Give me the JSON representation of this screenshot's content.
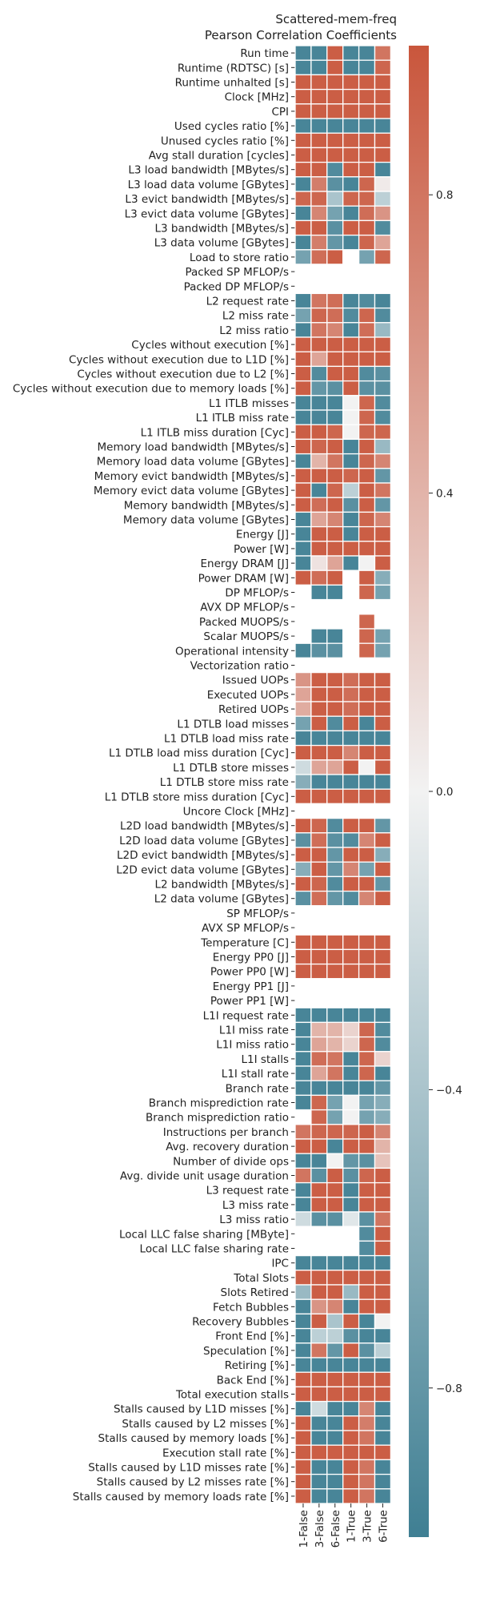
{
  "chart_data": {
    "type": "heatmap",
    "title": "Scattered-mem-freq",
    "subtitle": "Pearson Correlation Coefficients",
    "columns": [
      "1-False",
      "3-False",
      "6-False",
      "1-True",
      "3-True",
      "6-True"
    ],
    "colorbar": {
      "min": -1.0,
      "max": 1.0,
      "ticks": [
        0.8,
        0.4,
        0.0,
        -0.4,
        -0.8
      ],
      "tick_labels": [
        "0.8",
        "0.4",
        "0.0",
        "−0.4",
        "−0.8"
      ],
      "low_color": "#3f7f93",
      "mid_color": "#f2f2f2",
      "high_color": "#c9563c"
    },
    "missing_color": "#ffffff",
    "rows": [
      {
        "label": "Run time",
        "values": [
          -0.95,
          -0.95,
          0.95,
          -0.95,
          -0.95,
          0.8
        ]
      },
      {
        "label": "Runtime (RDTSC) [s]",
        "values": [
          -0.95,
          -0.95,
          0.95,
          -0.95,
          -0.95,
          0.9
        ]
      },
      {
        "label": "Runtime unhalted [s]",
        "values": [
          0.95,
          0.95,
          0.95,
          0.95,
          0.95,
          0.95
        ]
      },
      {
        "label": "Clock [MHz]",
        "values": [
          0.95,
          0.95,
          0.95,
          0.95,
          0.95,
          0.95
        ]
      },
      {
        "label": "CPI",
        "values": [
          0.95,
          0.95,
          0.95,
          0.95,
          0.95,
          0.95
        ]
      },
      {
        "label": "Used cycles ratio [%]",
        "values": [
          -0.95,
          -0.95,
          -0.95,
          -0.95,
          -0.95,
          -0.95
        ]
      },
      {
        "label": "Unused cycles ratio [%]",
        "values": [
          0.95,
          0.95,
          0.95,
          0.95,
          0.95,
          0.95
        ]
      },
      {
        "label": "Avg stall duration [cycles]",
        "values": [
          0.95,
          0.95,
          0.95,
          0.95,
          0.95,
          0.95
        ]
      },
      {
        "label": "L3 load bandwidth [MBytes/s]",
        "values": [
          0.95,
          0.95,
          -0.9,
          0.95,
          0.95,
          -0.95
        ]
      },
      {
        "label": "L3 load data volume [GBytes]",
        "values": [
          -0.95,
          0.75,
          -0.85,
          -0.95,
          0.9,
          0.05
        ]
      },
      {
        "label": "L3 evict bandwidth [MBytes/s]",
        "values": [
          0.9,
          0.9,
          -0.4,
          0.9,
          0.9,
          -0.3
        ]
      },
      {
        "label": "L3 evict data volume [GBytes]",
        "values": [
          -0.95,
          0.7,
          -0.7,
          -0.95,
          0.85,
          0.6
        ]
      },
      {
        "label": "L3 bandwidth [MBytes/s]",
        "values": [
          0.95,
          0.95,
          -0.85,
          0.95,
          0.95,
          -0.9
        ]
      },
      {
        "label": "L3 data volume [GBytes]",
        "values": [
          -0.95,
          0.75,
          -0.8,
          -0.95,
          0.9,
          0.5
        ]
      },
      {
        "label": "Load to store ratio",
        "values": [
          -0.7,
          0.85,
          0.95,
          null,
          -0.7,
          0.9
        ]
      },
      {
        "label": "Packed SP MFLOP/s",
        "values": [
          null,
          null,
          null,
          null,
          null,
          null
        ]
      },
      {
        "label": "Packed DP MFLOP/s",
        "values": [
          null,
          null,
          null,
          null,
          null,
          null
        ]
      },
      {
        "label": "L2 request rate",
        "values": [
          -0.95,
          0.8,
          0.85,
          -0.95,
          -0.9,
          -0.95
        ]
      },
      {
        "label": "L2 miss rate",
        "values": [
          -0.7,
          0.9,
          0.85,
          -0.9,
          0.9,
          -0.9
        ]
      },
      {
        "label": "L2 miss ratio",
        "values": [
          -0.95,
          0.8,
          0.7,
          -0.95,
          0.85,
          -0.5
        ]
      },
      {
        "label": "Cycles without execution [%]",
        "values": [
          0.95,
          0.95,
          0.95,
          0.95,
          0.95,
          0.95
        ]
      },
      {
        "label": "Cycles without execution due to L1D [%]",
        "values": [
          0.95,
          0.5,
          0.95,
          0.95,
          0.95,
          0.95
        ]
      },
      {
        "label": "Cycles without execution due to L2 [%]",
        "values": [
          0.95,
          -0.9,
          0.95,
          0.95,
          -0.9,
          -0.85
        ]
      },
      {
        "label": "Cycles without execution due to memory loads [%]",
        "values": [
          0.95,
          -0.8,
          -0.85,
          0.95,
          -0.85,
          -0.85
        ]
      },
      {
        "label": "L1 ITLB misses",
        "values": [
          -0.95,
          -0.95,
          -0.95,
          0.0,
          0.9,
          -0.9
        ]
      },
      {
        "label": "L1 ITLB miss rate",
        "values": [
          -0.95,
          -0.95,
          -0.95,
          0.0,
          0.9,
          -0.9
        ]
      },
      {
        "label": "L1 ITLB miss duration [Cyc]",
        "values": [
          0.95,
          0.95,
          0.9,
          0.0,
          0.9,
          0.9
        ]
      },
      {
        "label": "Memory load bandwidth [MBytes/s]",
        "values": [
          0.95,
          0.9,
          0.95,
          -0.95,
          0.95,
          -0.5
        ]
      },
      {
        "label": "Memory load data volume [GBytes]",
        "values": [
          -0.95,
          0.4,
          0.8,
          -0.95,
          0.9,
          0.7
        ]
      },
      {
        "label": "Memory evict bandwidth [MBytes/s]",
        "values": [
          0.95,
          0.95,
          0.95,
          0.9,
          0.95,
          -0.8
        ]
      },
      {
        "label": "Memory evict data volume [GBytes]",
        "values": [
          0.95,
          -0.95,
          0.9,
          -0.3,
          0.95,
          0.8
        ]
      },
      {
        "label": "Memory bandwidth [MBytes/s]",
        "values": [
          0.95,
          0.85,
          0.95,
          -0.85,
          0.95,
          -0.8
        ]
      },
      {
        "label": "Memory data volume [GBytes]",
        "values": [
          -0.95,
          0.5,
          0.7,
          -0.95,
          0.9,
          0.7
        ]
      },
      {
        "label": "Energy [J]",
        "values": [
          -0.95,
          0.95,
          0.95,
          -0.95,
          0.95,
          0.95
        ]
      },
      {
        "label": "Power [W]",
        "values": [
          -0.95,
          0.95,
          0.95,
          0.95,
          0.95,
          0.95
        ]
      },
      {
        "label": "Energy DRAM [J]",
        "values": [
          -0.95,
          0.1,
          0.5,
          -0.95,
          0.0,
          0.95
        ]
      },
      {
        "label": "Power DRAM [W]",
        "values": [
          0.95,
          0.85,
          0.95,
          null,
          0.95,
          -0.6
        ]
      },
      {
        "label": "DP MFLOP/s",
        "values": [
          null,
          -0.95,
          -0.95,
          null,
          0.9,
          -0.7
        ]
      },
      {
        "label": "AVX DP MFLOP/s",
        "values": [
          null,
          null,
          null,
          null,
          null,
          null
        ]
      },
      {
        "label": "Packed MUOPS/s",
        "values": [
          null,
          null,
          null,
          null,
          0.9,
          null
        ]
      },
      {
        "label": "Scalar MUOPS/s",
        "values": [
          null,
          -0.95,
          -0.95,
          null,
          0.9,
          -0.7
        ]
      },
      {
        "label": "Operational intensity",
        "values": [
          -0.95,
          -0.85,
          -0.85,
          null,
          0.9,
          -0.7
        ]
      },
      {
        "label": "Vectorization ratio",
        "values": [
          null,
          null,
          null,
          null,
          null,
          null
        ]
      },
      {
        "label": "Issued UOPs",
        "values": [
          0.6,
          0.95,
          0.95,
          0.85,
          0.95,
          0.95
        ]
      },
      {
        "label": "Executed UOPs",
        "values": [
          0.5,
          0.95,
          0.95,
          0.85,
          0.95,
          0.95
        ]
      },
      {
        "label": "Retired UOPs",
        "values": [
          0.45,
          0.95,
          0.95,
          0.85,
          0.95,
          0.95
        ]
      },
      {
        "label": "L1 DTLB load misses",
        "values": [
          -0.7,
          0.95,
          -0.9,
          0.95,
          -0.95,
          0.95
        ]
      },
      {
        "label": "L1 DTLB load miss rate",
        "values": [
          -0.95,
          -0.95,
          -0.95,
          -0.95,
          -0.95,
          -0.95
        ]
      },
      {
        "label": "L1 DTLB load miss duration [Cyc]",
        "values": [
          0.95,
          0.95,
          0.95,
          0.7,
          0.95,
          0.95
        ]
      },
      {
        "label": "L1 DTLB store misses",
        "values": [
          -0.2,
          0.5,
          0.5,
          0.95,
          0.0,
          0.95
        ]
      },
      {
        "label": "L1 DTLB store miss rate",
        "values": [
          -0.6,
          -0.95,
          -0.95,
          -0.95,
          -0.95,
          -0.95
        ]
      },
      {
        "label": "L1 DTLB store miss duration [Cyc]",
        "values": [
          0.95,
          0.95,
          0.95,
          0.95,
          0.95,
          0.95
        ]
      },
      {
        "label": "Uncore Clock [MHz]",
        "values": [
          null,
          null,
          null,
          null,
          null,
          null
        ]
      },
      {
        "label": "L2D load bandwidth [MBytes/s]",
        "values": [
          0.95,
          0.9,
          -0.9,
          0.95,
          0.95,
          -0.8
        ]
      },
      {
        "label": "L2D load data volume [GBytes]",
        "values": [
          -0.85,
          0.85,
          -0.85,
          -0.9,
          0.7,
          0.95
        ]
      },
      {
        "label": "L2D evict bandwidth [MBytes/s]",
        "values": [
          0.95,
          0.95,
          -0.8,
          0.95,
          0.95,
          -0.6
        ]
      },
      {
        "label": "L2D evict data volume [GBytes]",
        "values": [
          -0.6,
          0.95,
          -0.8,
          0.7,
          -0.7,
          0.95
        ]
      },
      {
        "label": "L2 bandwidth [MBytes/s]",
        "values": [
          0.95,
          0.9,
          -0.9,
          0.95,
          0.95,
          -0.8
        ]
      },
      {
        "label": "L2 data volume [GBytes]",
        "values": [
          -0.85,
          0.85,
          -0.8,
          -0.9,
          0.7,
          0.95
        ]
      },
      {
        "label": "SP MFLOP/s",
        "values": [
          null,
          null,
          null,
          null,
          null,
          null
        ]
      },
      {
        "label": "AVX SP MFLOP/s",
        "values": [
          null,
          null,
          null,
          null,
          null,
          null
        ]
      },
      {
        "label": "Temperature [C]",
        "values": [
          0.95,
          0.95,
          0.95,
          0.95,
          0.95,
          0.95
        ]
      },
      {
        "label": "Energy PP0 [J]",
        "values": [
          0.95,
          0.95,
          0.95,
          0.95,
          0.95,
          0.95
        ]
      },
      {
        "label": "Power PP0 [W]",
        "values": [
          0.95,
          0.95,
          0.95,
          0.95,
          0.95,
          0.95
        ]
      },
      {
        "label": "Energy PP1 [J]",
        "values": [
          null,
          null,
          null,
          null,
          null,
          null
        ]
      },
      {
        "label": "Power PP1 [W]",
        "values": [
          null,
          null,
          null,
          null,
          null,
          null
        ]
      },
      {
        "label": "L1I request rate",
        "values": [
          -0.95,
          -0.95,
          -0.95,
          -0.95,
          -0.95,
          -0.95
        ]
      },
      {
        "label": "L1I miss rate",
        "values": [
          -0.95,
          0.4,
          0.4,
          0.2,
          0.9,
          -0.9
        ]
      },
      {
        "label": "L1I miss ratio",
        "values": [
          -0.95,
          0.5,
          0.4,
          0.2,
          0.9,
          -0.9
        ]
      },
      {
        "label": "L1I stalls",
        "values": [
          -0.95,
          0.85,
          0.8,
          -0.95,
          0.9,
          0.2
        ]
      },
      {
        "label": "L1I stall rate",
        "values": [
          -0.95,
          0.5,
          0.8,
          -0.95,
          0.9,
          -0.95
        ]
      },
      {
        "label": "Branch rate",
        "values": [
          -0.95,
          -0.95,
          -0.95,
          -0.95,
          -0.95,
          -0.8
        ]
      },
      {
        "label": "Branch misprediction rate",
        "values": [
          -0.95,
          0.9,
          -0.7,
          0.0,
          -0.7,
          -0.6
        ]
      },
      {
        "label": "Branch misprediction ratio",
        "values": [
          null,
          0.9,
          -0.7,
          0.0,
          -0.7,
          -0.6
        ]
      },
      {
        "label": "Instructions per branch",
        "values": [
          0.8,
          0.9,
          0.9,
          0.9,
          0.95,
          0.7
        ]
      },
      {
        "label": "Avg. recovery duration",
        "values": [
          0.95,
          0.95,
          -0.95,
          0.95,
          0.95,
          0.4
        ]
      },
      {
        "label": "Number of divide ops",
        "values": [
          -0.95,
          -0.95,
          0.0,
          -0.8,
          -0.85,
          0.3
        ]
      },
      {
        "label": "Avg. divide unit usage duration",
        "values": [
          0.8,
          -0.85,
          0.95,
          -0.85,
          0.9,
          0.95
        ]
      },
      {
        "label": "L3 request rate",
        "values": [
          -0.95,
          0.95,
          0.95,
          -0.95,
          0.95,
          0.95
        ]
      },
      {
        "label": "L3 miss rate",
        "values": [
          -0.95,
          0.95,
          0.95,
          -0.95,
          0.95,
          0.95
        ]
      },
      {
        "label": "L3 miss ratio",
        "values": [
          -0.2,
          -0.85,
          -0.85,
          -0.1,
          -0.85,
          0.8
        ]
      },
      {
        "label": "Local LLC false sharing [MByte]",
        "values": [
          null,
          null,
          null,
          null,
          -0.9,
          0.95
        ]
      },
      {
        "label": "Local LLC false sharing rate",
        "values": [
          null,
          null,
          null,
          null,
          -0.9,
          0.95
        ]
      },
      {
        "label": "IPC",
        "values": [
          -0.95,
          -0.95,
          -0.95,
          -0.95,
          -0.95,
          -0.95
        ]
      },
      {
        "label": "Total Slots",
        "values": [
          0.95,
          0.95,
          0.95,
          0.95,
          0.95,
          0.95
        ]
      },
      {
        "label": "Slots Retired",
        "values": [
          -0.5,
          0.95,
          0.95,
          -0.5,
          0.95,
          0.95
        ]
      },
      {
        "label": "Fetch Bubbles",
        "values": [
          -0.95,
          0.6,
          0.7,
          -0.95,
          0.95,
          0.95
        ]
      },
      {
        "label": "Recovery Bubbles",
        "values": [
          -0.95,
          0.95,
          -0.4,
          0.95,
          -0.95,
          0.0
        ]
      },
      {
        "label": "Front End [%]",
        "values": [
          -0.95,
          -0.3,
          -0.3,
          -0.85,
          -0.95,
          -0.95
        ]
      },
      {
        "label": "Speculation [%]",
        "values": [
          -0.95,
          0.8,
          -0.8,
          0.95,
          -0.85,
          -0.3
        ]
      },
      {
        "label": "Retiring [%]",
        "values": [
          -0.95,
          -0.95,
          -0.95,
          -0.95,
          -0.95,
          -0.95
        ]
      },
      {
        "label": "Back End [%]",
        "values": [
          0.95,
          0.95,
          0.95,
          0.95,
          0.95,
          0.95
        ]
      },
      {
        "label": "Total execution stalls",
        "values": [
          0.95,
          0.95,
          0.95,
          0.95,
          0.95,
          0.95
        ]
      },
      {
        "label": "Stalls caused by L1D misses [%]",
        "values": [
          -0.95,
          -0.2,
          -0.95,
          -0.95,
          0.7,
          -0.95
        ]
      },
      {
        "label": "Stalls caused by L2 misses [%]",
        "values": [
          0.95,
          -0.95,
          -0.95,
          0.95,
          0.75,
          -0.95
        ]
      },
      {
        "label": "Stalls caused by memory loads [%]",
        "values": [
          0.95,
          -0.95,
          -0.95,
          0.95,
          0.8,
          -0.95
        ]
      },
      {
        "label": "Execution stall rate [%]",
        "values": [
          0.95,
          0.95,
          0.95,
          0.95,
          0.95,
          0.95
        ]
      },
      {
        "label": "Stalls caused by L1D misses rate [%]",
        "values": [
          0.95,
          -0.95,
          -0.95,
          0.95,
          0.8,
          -0.95
        ]
      },
      {
        "label": "Stalls caused by L2 misses rate [%]",
        "values": [
          0.95,
          -0.95,
          -0.95,
          0.95,
          0.8,
          -0.95
        ]
      },
      {
        "label": "Stalls caused by memory loads rate [%]",
        "values": [
          0.95,
          -0.95,
          -0.95,
          0.95,
          0.8,
          -0.95
        ]
      }
    ]
  }
}
